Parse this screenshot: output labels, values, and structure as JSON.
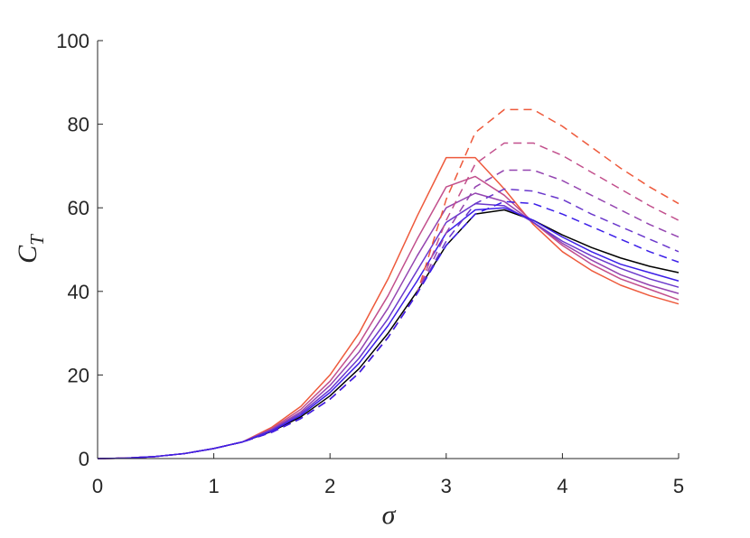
{
  "chart_data": {
    "type": "line",
    "xlabel": "σ",
    "ylabel": "C",
    "ylabel_subscript": "T",
    "xlim": [
      0,
      5
    ],
    "ylim": [
      0,
      100
    ],
    "xticks": [
      0,
      1,
      2,
      3,
      4,
      5
    ],
    "yticks": [
      0,
      20,
      40,
      60,
      80,
      100
    ],
    "grid": false,
    "x": [
      0,
      0.25,
      0.5,
      0.75,
      1,
      1.25,
      1.5,
      1.75,
      2,
      2.25,
      2.5,
      2.75,
      3,
      3.25,
      3.5,
      3.75,
      4,
      4.25,
      4.5,
      4.75,
      5
    ],
    "series": [
      {
        "color": "#000000",
        "dash": false,
        "values": [
          0,
          0.1,
          0.5,
          1.2,
          2.4,
          4.0,
          6.5,
          10,
          15,
          21.5,
          30,
          40,
          51,
          58.5,
          59.5,
          57,
          53.5,
          50.5,
          48,
          46,
          44.5
        ]
      },
      {
        "color": "#ee5a3c",
        "dash": false,
        "values": [
          0,
          0.1,
          0.5,
          1.2,
          2.4,
          4.0,
          7.5,
          12.5,
          20,
          30,
          43,
          58,
          72,
          72,
          64.5,
          56,
          49.5,
          45,
          41.5,
          39,
          37
        ]
      },
      {
        "color": "#c24f8c",
        "dash": false,
        "values": [
          0,
          0.1,
          0.5,
          1.2,
          2.4,
          4.0,
          7.2,
          11.8,
          18.5,
          27.5,
          39,
          52.5,
          65,
          67.5,
          63,
          56.5,
          51,
          46.5,
          43,
          40.5,
          38
        ]
      },
      {
        "color": "#9444b0",
        "dash": false,
        "values": [
          0,
          0.1,
          0.5,
          1.2,
          2.4,
          4.0,
          7,
          11.2,
          17.5,
          25.5,
          36,
          48.5,
          60,
          63.5,
          61.5,
          56.5,
          51.5,
          47.5,
          44,
          41.5,
          39.5
        ]
      },
      {
        "color": "#6a38cc",
        "dash": false,
        "values": [
          0,
          0.1,
          0.5,
          1.2,
          2.4,
          4.0,
          6.8,
          10.8,
          16.5,
          24,
          33.5,
          45,
          56.5,
          61,
          60.5,
          56.5,
          52,
          48.5,
          45.5,
          43,
          41
        ]
      },
      {
        "color": "#3b1ee8",
        "dash": false,
        "values": [
          0,
          0.1,
          0.5,
          1.2,
          2.4,
          4.0,
          6.6,
          10.4,
          15.8,
          22.8,
          31.8,
          42.5,
          54,
          59.5,
          60,
          57,
          53,
          49.5,
          46.5,
          44.5,
          42.5
        ]
      },
      {
        "color": "#ee5a3c",
        "dash": true,
        "values": [
          0,
          0.1,
          0.5,
          1.2,
          2.4,
          4.0,
          6.3,
          9.6,
          14.2,
          20.5,
          29,
          39.5,
          62,
          78,
          83.5,
          83.5,
          79.5,
          74.5,
          69.5,
          65,
          61
        ]
      },
      {
        "color": "#c24f8c",
        "dash": true,
        "values": [
          0,
          0.1,
          0.5,
          1.2,
          2.4,
          4.0,
          6.3,
          9.6,
          14.2,
          20.5,
          29,
          39.5,
          57,
          70.5,
          75.5,
          75.5,
          72.5,
          68.5,
          64.5,
          60.5,
          57
        ]
      },
      {
        "color": "#9444b0",
        "dash": true,
        "values": [
          0,
          0.1,
          0.5,
          1.2,
          2.4,
          4.0,
          6.3,
          9.6,
          14.2,
          20.5,
          29,
          39.5,
          54,
          65,
          69,
          69,
          66.5,
          63,
          59.5,
          56,
          53
        ]
      },
      {
        "color": "#6a38cc",
        "dash": true,
        "values": [
          0,
          0.1,
          0.5,
          1.2,
          2.4,
          4.0,
          6.3,
          9.6,
          14.2,
          20.5,
          29,
          39.5,
          52,
          61,
          64.5,
          64,
          62,
          58.5,
          55.5,
          52.5,
          49.5
        ]
      },
      {
        "color": "#3b1ee8",
        "dash": true,
        "values": [
          0,
          0.1,
          0.5,
          1.2,
          2.4,
          4.0,
          6.3,
          9.6,
          14.2,
          20.5,
          29,
          39.5,
          51,
          58.5,
          61.5,
          61,
          58.5,
          55.5,
          52.5,
          49.5,
          47
        ]
      }
    ]
  }
}
